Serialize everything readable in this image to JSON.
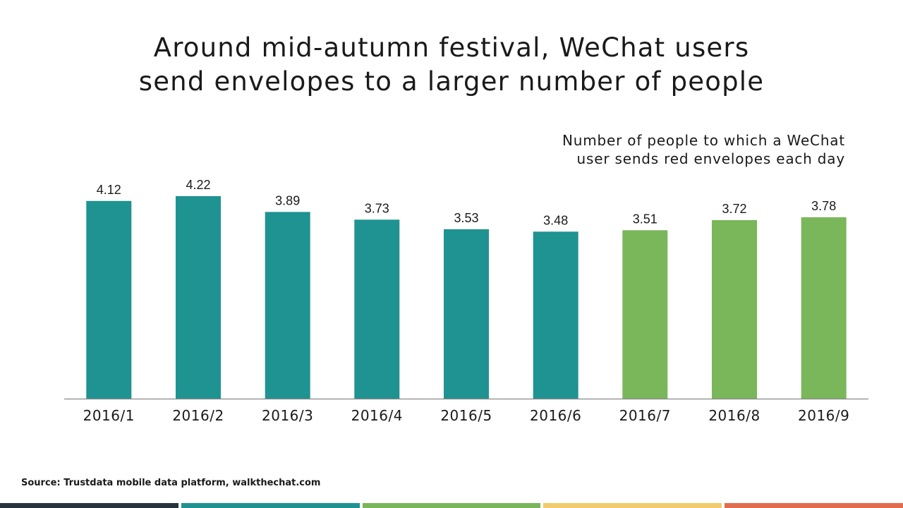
{
  "title_lines": [
    "Around mid-autumn festival, WeChat users",
    "send envelopes to a larger number of people"
  ],
  "subtitle_lines": [
    "Number of people to which a WeChat",
    "user sends red envelopes each day"
  ],
  "source": "Source: Trustdata mobile data platform, walkthechat.com",
  "colors": {
    "teal": "#1f9391",
    "green": "#7ab65a",
    "axis": "#888888",
    "stripe": [
      "#26333d",
      "#1f9391",
      "#7ab65a",
      "#f2cc6b",
      "#e36c4f"
    ]
  },
  "chart_data": {
    "type": "bar",
    "categories": [
      "2016/1",
      "2016/2",
      "2016/3",
      "2016/4",
      "2016/5",
      "2016/6",
      "2016/7",
      "2016/8",
      "2016/9"
    ],
    "values": [
      4.12,
      4.22,
      3.89,
      3.73,
      3.53,
      3.48,
      3.51,
      3.72,
      3.78
    ],
    "value_labels": [
      "4.12",
      "4.22",
      "3.89",
      "3.73",
      "3.53",
      "3.48",
      "3.51",
      "3.72",
      "3.78"
    ],
    "bar_colors": [
      "teal",
      "teal",
      "teal",
      "teal",
      "teal",
      "teal",
      "green",
      "green",
      "green"
    ],
    "xlabel": "",
    "ylabel": "",
    "ylim": [
      0,
      4.22
    ],
    "grid": false,
    "legend": "none"
  }
}
